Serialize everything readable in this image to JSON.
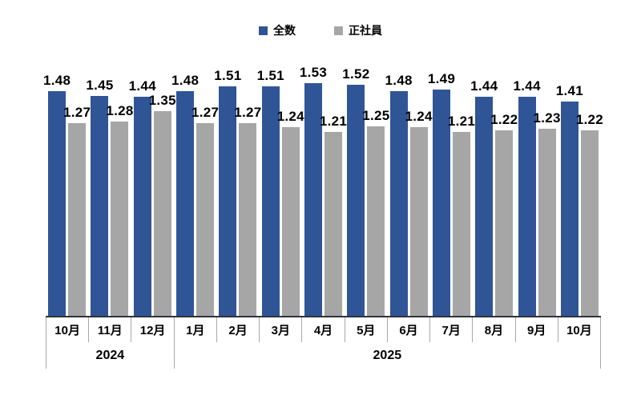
{
  "chart_data": {
    "type": "bar",
    "title": "",
    "xlabel": "",
    "ylabel": "",
    "grid": false,
    "legend_position": "top",
    "ylim": [
      0,
      1.8
    ],
    "categories": [
      "10月",
      "11月",
      "12月",
      "1月",
      "2月",
      "3月",
      "4月",
      "5月",
      "6月",
      "7月",
      "8月",
      "9月",
      "10月"
    ],
    "year_groups": [
      {
        "label": "2024",
        "span": 3
      },
      {
        "label": "2025",
        "span": 10
      }
    ],
    "series": [
      {
        "name": "全数",
        "color": "#2f5597",
        "values": [
          1.48,
          1.45,
          1.44,
          1.48,
          1.51,
          1.51,
          1.53,
          1.52,
          1.48,
          1.49,
          1.44,
          1.44,
          1.41
        ]
      },
      {
        "name": "正社員",
        "color": "#a6a6a6",
        "values": [
          1.27,
          1.28,
          1.35,
          1.27,
          1.27,
          1.24,
          1.21,
          1.25,
          1.24,
          1.21,
          1.22,
          1.23,
          1.22
        ]
      }
    ],
    "value_label_decimals": 2
  },
  "colors": {
    "background": "#ffffff",
    "axis_line": "#31323c",
    "tick_line": "#a9a9a9",
    "label_text": "#000000"
  }
}
